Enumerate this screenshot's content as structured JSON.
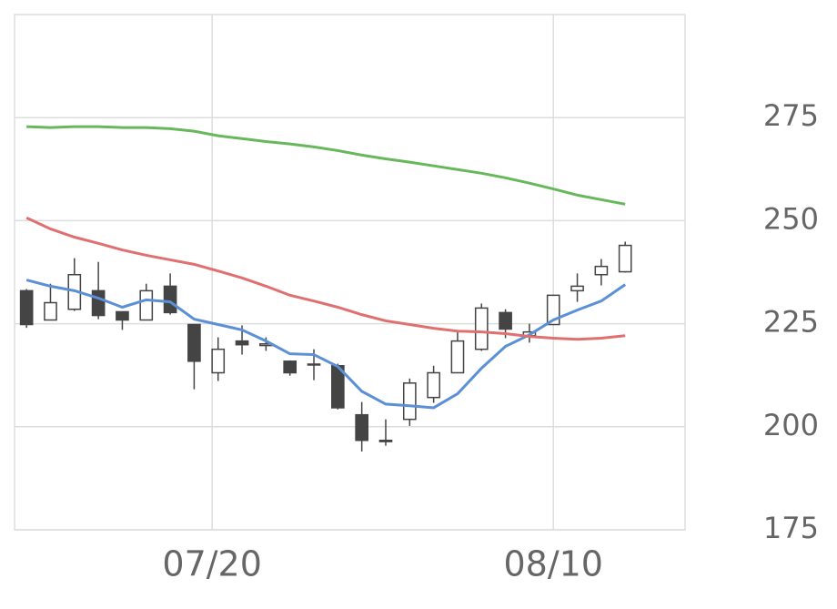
{
  "chart_data": {
    "type": "candlestick",
    "ylim": [
      175,
      300
    ],
    "yticks": [
      175,
      200,
      225,
      250,
      275
    ],
    "xlim": [
      -0.5,
      27.5
    ],
    "xticks": [
      {
        "value": 7.75,
        "label": "07/20"
      },
      {
        "value": 22,
        "label": "08/10"
      }
    ],
    "grid": true,
    "up_color": "#ffffff",
    "down_color": "#444444",
    "open": [
      233.0,
      225.9,
      228.5,
      233.0,
      227.9,
      225.9,
      234.1,
      224.8,
      213.1,
      220.8,
      219.7,
      215.9,
      215.2,
      214.8,
      202.9,
      196.4,
      201.8,
      207.1,
      213.1,
      218.8,
      227.7,
      222.1,
      224.8,
      233.0,
      236.9,
      237.6
    ],
    "high": [
      233.4,
      234.7,
      240.9,
      240.0,
      228.0,
      234.7,
      237.2,
      224.8,
      221.7,
      224.6,
      221.7,
      216.1,
      218.8,
      215.3,
      206.0,
      201.8,
      211.7,
      214.8,
      223.0,
      229.9,
      228.5,
      225.0,
      231.9,
      237.2,
      240.7,
      244.9
    ],
    "low": [
      224.0,
      225.9,
      228.1,
      226.1,
      223.5,
      225.9,
      227.2,
      209.1,
      211.1,
      217.5,
      218.4,
      212.4,
      211.3,
      204.2,
      194.0,
      195.4,
      200.2,
      205.8,
      213.1,
      218.4,
      221.5,
      220.4,
      224.8,
      230.3,
      234.3,
      237.4
    ],
    "close": [
      224.8,
      230.1,
      236.9,
      227.0,
      225.9,
      233.0,
      227.7,
      215.9,
      218.8,
      219.9,
      220.1,
      213.1,
      215.0,
      204.6,
      196.7,
      196.7,
      210.6,
      213.1,
      220.8,
      228.8,
      223.7,
      223.0,
      231.9,
      234.1,
      238.9,
      244.0
    ],
    "lines": [
      {
        "color": "#5b8fd6",
        "values": [
          235.6,
          234.1,
          233.0,
          231.2,
          229.0,
          230.8,
          230.3,
          226.1,
          224.8,
          223.5,
          220.8,
          217.7,
          217.5,
          214.6,
          208.6,
          205.5,
          205.1,
          204.6,
          208.0,
          214.2,
          219.5,
          222.3,
          225.9,
          228.3,
          230.5,
          234.5
        ]
      },
      {
        "color": "#e07070",
        "values": [
          250.7,
          248.0,
          246.0,
          244.5,
          242.9,
          241.6,
          240.5,
          239.4,
          237.8,
          236.1,
          234.1,
          231.9,
          230.5,
          229.0,
          227.2,
          225.7,
          224.8,
          223.9,
          223.2,
          223.0,
          222.6,
          221.9,
          221.5,
          221.2,
          221.5,
          222.1
        ]
      },
      {
        "color": "#66b85a",
        "values": [
          272.8,
          272.6,
          272.8,
          272.8,
          272.6,
          272.6,
          272.3,
          271.7,
          270.6,
          269.9,
          269.2,
          268.6,
          267.9,
          267.0,
          265.9,
          265.0,
          264.2,
          263.3,
          262.4,
          261.5,
          260.4,
          259.1,
          257.7,
          256.2,
          255.1,
          254.0
        ]
      }
    ]
  }
}
